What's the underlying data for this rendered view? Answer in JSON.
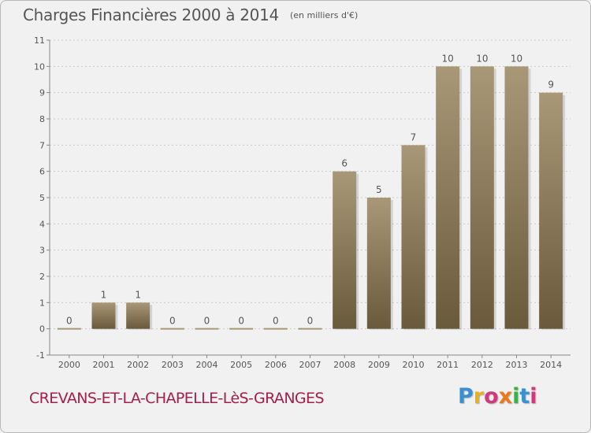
{
  "header": {
    "title": "Charges Financières 2000 à 2014",
    "subtitle": "(en milliers d'€)"
  },
  "footer": {
    "commune": "CREVANS-ET-LA-CHAPELLE-LèS-GRANGES",
    "logo_text": "Proxiti",
    "logo_colors": [
      "#3a8fd0",
      "#e8b020",
      "#d03a7a",
      "#e87a20",
      "#3ab04a",
      "#3a8fd0",
      "#d03a7a"
    ]
  },
  "colors": {
    "bar_top": "#a89878",
    "bar_bottom": "#6a5a3c",
    "grid": "#cccccc",
    "axis": "#888888",
    "text": "#555555"
  },
  "chart_data": {
    "type": "bar",
    "title": "Charges Financières 2000 à 2014",
    "subtitle": "(en milliers d'€)",
    "xlabel": "",
    "ylabel": "",
    "categories": [
      "2000",
      "2001",
      "2002",
      "2003",
      "2004",
      "2005",
      "2006",
      "2007",
      "2008",
      "2009",
      "2010",
      "2011",
      "2012",
      "2013",
      "2014"
    ],
    "values": [
      0,
      1,
      1,
      0,
      0,
      0,
      0,
      0,
      6,
      5,
      7,
      10,
      10,
      10,
      9
    ],
    "data_labels": [
      "0",
      "1",
      "1",
      "0",
      "0",
      "0",
      "0",
      "0",
      "6",
      "5",
      "7",
      "10",
      "10",
      "10",
      "9"
    ],
    "y_ticks": [
      -1,
      0,
      1,
      2,
      3,
      4,
      5,
      6,
      7,
      8,
      9,
      10,
      11
    ],
    "ylim": [
      -1,
      11
    ],
    "grid": true
  }
}
